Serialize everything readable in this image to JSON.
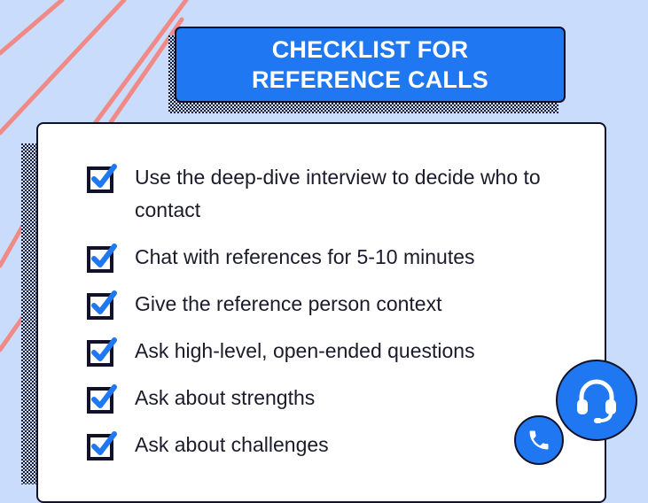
{
  "title": {
    "line1": "CHECKLIST FOR",
    "line2": "REFERENCE CALLS"
  },
  "checklist": [
    {
      "text": "Use the deep-dive interview to decide who to contact",
      "checked": true
    },
    {
      "text": "Chat with references for 5-10 minutes",
      "checked": true
    },
    {
      "text": "Give the reference person context",
      "checked": true
    },
    {
      "text": "Ask high-level, open-ended questions",
      "checked": true
    },
    {
      "text": "Ask about strengths",
      "checked": true
    },
    {
      "text": "Ask about challenges",
      "checked": true
    }
  ],
  "icons": {
    "checkbox": "checkbox-checked-icon",
    "headset": "headset-icon",
    "phone": "phone-icon"
  },
  "colors": {
    "background": "#c9dcfb",
    "accent": "#1f78f2",
    "scribble": "#f08a86",
    "outline": "#11122a"
  }
}
